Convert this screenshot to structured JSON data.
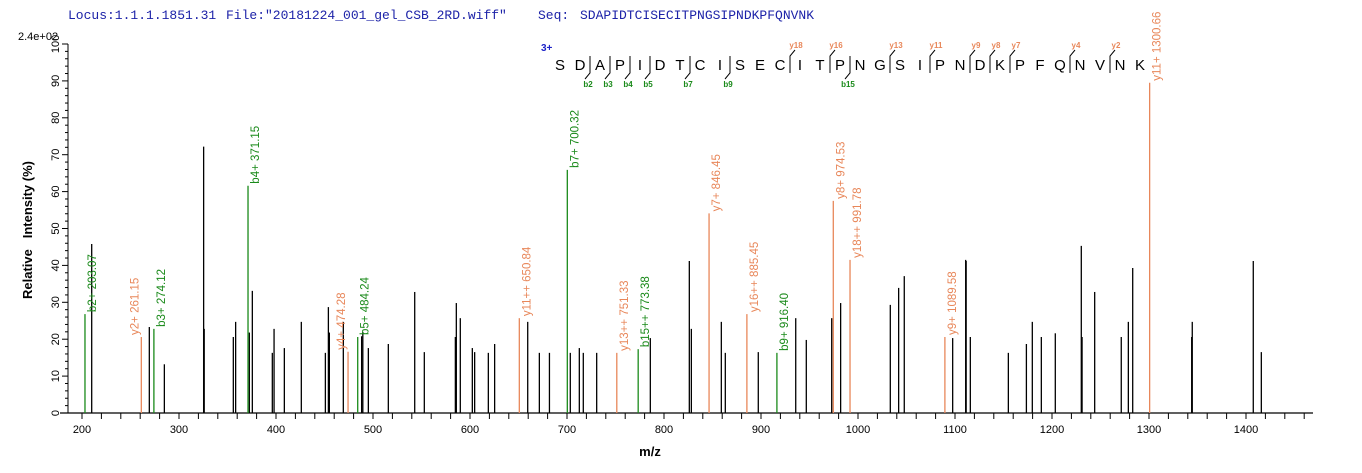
{
  "header": {
    "locus": "Locus:1.1.1.1851.31",
    "file": "File:\"20181224_001_gel_CSB_2RD.wiff\"",
    "seq_label": "Seq:",
    "seq_value": "SDAPIDTCISECITPNGSIPNDKPFQNVNK"
  },
  "colors": {
    "b_ion": "#1a8a1a",
    "y_ion": "#e8875a",
    "peak": "#000000",
    "header": "#1c22a8",
    "charge": "#1c22c8"
  },
  "chart_data": {
    "type": "bar",
    "title": "",
    "xlabel": "m/z",
    "ylabel": "Relative   Intensity (%)",
    "y_scale_label": "2.4e+02",
    "xlim": [
      200,
      1469
    ],
    "ylim": [
      0,
      100
    ],
    "x_ticks": [
      "200",
      "300",
      "400",
      "500",
      "600",
      "700",
      "800",
      "900",
      "1000",
      "1100",
      "1200",
      "1300",
      "1400"
    ],
    "y_ticks": [
      "0",
      "10",
      "20",
      "30",
      "40",
      "50",
      "60",
      "70",
      "80",
      "90",
      "100"
    ],
    "grid": false,
    "unannotated_peaks": [
      [
        210,
        45.8
      ],
      [
        269.4,
        23.3
      ],
      [
        284.9,
        13.2
      ],
      [
        325.4,
        72.2
      ],
      [
        326,
        22.8
      ],
      [
        356,
        20.6
      ],
      [
        358.4,
        24.7
      ],
      [
        372.5,
        21.8
      ],
      [
        375.6,
        33.1
      ],
      [
        396.2,
        16.3
      ],
      [
        398,
        22.8
      ],
      [
        408.6,
        17.6
      ],
      [
        426.1,
        24.7
      ],
      [
        450.9,
        16.3
      ],
      [
        454,
        28.7
      ],
      [
        455,
        21.8
      ],
      [
        469.4,
        24.7
      ],
      [
        488.3,
        20.8
      ],
      [
        489.5,
        22
      ],
      [
        495.2,
        17.6
      ],
      [
        515.8,
        18.7
      ],
      [
        543,
        32.8
      ],
      [
        552.9,
        16.5
      ],
      [
        584.9,
        20.6
      ],
      [
        585.9,
        29.8
      ],
      [
        590,
        25.7
      ],
      [
        602.4,
        17.6
      ],
      [
        604.8,
        16.5
      ],
      [
        618.9,
        16.3
      ],
      [
        625.4,
        18.7
      ],
      [
        659.5,
        24.7
      ],
      [
        671.5,
        16.3
      ],
      [
        681.9,
        16.3
      ],
      [
        703.4,
        16.3
      ],
      [
        712.7,
        17.6
      ],
      [
        716.8,
        16.3
      ],
      [
        730.6,
        16.3
      ],
      [
        785.9,
        20.3
      ],
      [
        826.1,
        41.2
      ],
      [
        828.2,
        22.8
      ],
      [
        859.1,
        24.7
      ],
      [
        863.2,
        16.3
      ],
      [
        897.2,
        16.5
      ],
      [
        935.8,
        25.7
      ],
      [
        946.7,
        19.8
      ],
      [
        972.9,
        25.7
      ],
      [
        982.1,
        29.8
      ],
      [
        1033.3,
        29.3
      ],
      [
        1041.9,
        33.9
      ],
      [
        1047.7,
        37.1
      ],
      [
        1097.6,
        20.3
      ],
      [
        1111,
        41.5
      ],
      [
        1111.5,
        41.2
      ],
      [
        1115.8,
        20.6
      ],
      [
        1155,
        16.3
      ],
      [
        1173.6,
        18.7
      ],
      [
        1179.7,
        24.7
      ],
      [
        1189,
        20.6
      ],
      [
        1203.4,
        21.6
      ],
      [
        1230.2,
        45.3
      ],
      [
        1230.6,
        20.6
      ],
      [
        1231,
        20.6
      ],
      [
        1244,
        32.8
      ],
      [
        1271.4,
        20.6
      ],
      [
        1278.7,
        24.7
      ],
      [
        1283.2,
        39.3
      ],
      [
        1344,
        20.6
      ],
      [
        1344.6,
        24.7
      ],
      [
        1407.5,
        41.2
      ],
      [
        1415.8,
        16.5
      ]
    ],
    "annotated_peaks": [
      {
        "label": "b2+ 203.07",
        "ion": "b",
        "mz": 203.07,
        "intensity": 26.8
      },
      {
        "label": "y2+ 261.15",
        "ion": "y",
        "mz": 261.15,
        "intensity": 20.6
      },
      {
        "label": "b3+ 274.12",
        "ion": "b",
        "mz": 274.12,
        "intensity": 22.8
      },
      {
        "label": "b4+ 371.15",
        "ion": "b",
        "mz": 371.15,
        "intensity": 61.6
      },
      {
        "label": "y4+ 474.28",
        "ion": "y",
        "mz": 474.28,
        "intensity": 16.6
      },
      {
        "label": "b5+ 484.24",
        "ion": "b",
        "mz": 484.24,
        "intensity": 20.6
      },
      {
        "label": "y11++ 650.84",
        "ion": "y",
        "mz": 650.84,
        "intensity": 25.7
      },
      {
        "label": "b7+ 700.32",
        "ion": "b",
        "mz": 700.32,
        "intensity": 65.9
      },
      {
        "label": "y13++ 751.33",
        "ion": "y",
        "mz": 751.33,
        "intensity": 16.3
      },
      {
        "label": "b15++ 773.38",
        "ion": "b",
        "mz": 773.38,
        "intensity": 17.3
      },
      {
        "label": "y7+ 846.45",
        "ion": "y",
        "mz": 846.45,
        "intensity": 54.1
      },
      {
        "label": "y16++ 885.45",
        "ion": "y",
        "mz": 885.45,
        "intensity": 26.8
      },
      {
        "label": "b9+ 916.40",
        "ion": "b",
        "mz": 916.4,
        "intensity": 16.3
      },
      {
        "label": "y8+ 974.53",
        "ion": "y",
        "mz": 974.53,
        "intensity": 57.5
      },
      {
        "label": "y18++ 991.78",
        "ion": "y",
        "mz": 991.78,
        "intensity": 41.5
      },
      {
        "label": "y9+ 1089.58",
        "ion": "y",
        "mz": 1089.58,
        "intensity": 20.6
      },
      {
        "label": "y11+ 1300.66",
        "ion": "y",
        "mz": 1300.66,
        "intensity": 89.5
      }
    ],
    "sequence_map": {
      "charge": "3+",
      "residues": [
        "S",
        "D",
        "A",
        "P",
        "I",
        "D",
        "T",
        "C",
        "I",
        "S",
        "E",
        "C",
        "I",
        "T",
        "P",
        "N",
        "G",
        "S",
        "I",
        "P",
        "N",
        "D",
        "K",
        "P",
        "F",
        "Q",
        "N",
        "V",
        "N",
        "K"
      ],
      "b_fragments": [
        {
          "label": "b2",
          "n": 2
        },
        {
          "label": "b3",
          "n": 3
        },
        {
          "label": "b4",
          "n": 4
        },
        {
          "label": "b5",
          "n": 5
        },
        {
          "label": "b7",
          "n": 7
        },
        {
          "label": "b9",
          "n": 9
        },
        {
          "label": "b15",
          "n": 15
        }
      ],
      "y_fragments": [
        {
          "label": "y18",
          "n": 18
        },
        {
          "label": "y16",
          "n": 16
        },
        {
          "label": "y13",
          "n": 13
        },
        {
          "label": "y11",
          "n": 11
        },
        {
          "label": "y9",
          "n": 9
        },
        {
          "label": "y8",
          "n": 8
        },
        {
          "label": "y7",
          "n": 7
        },
        {
          "label": "y4",
          "n": 4
        },
        {
          "label": "y2",
          "n": 2
        }
      ]
    }
  }
}
